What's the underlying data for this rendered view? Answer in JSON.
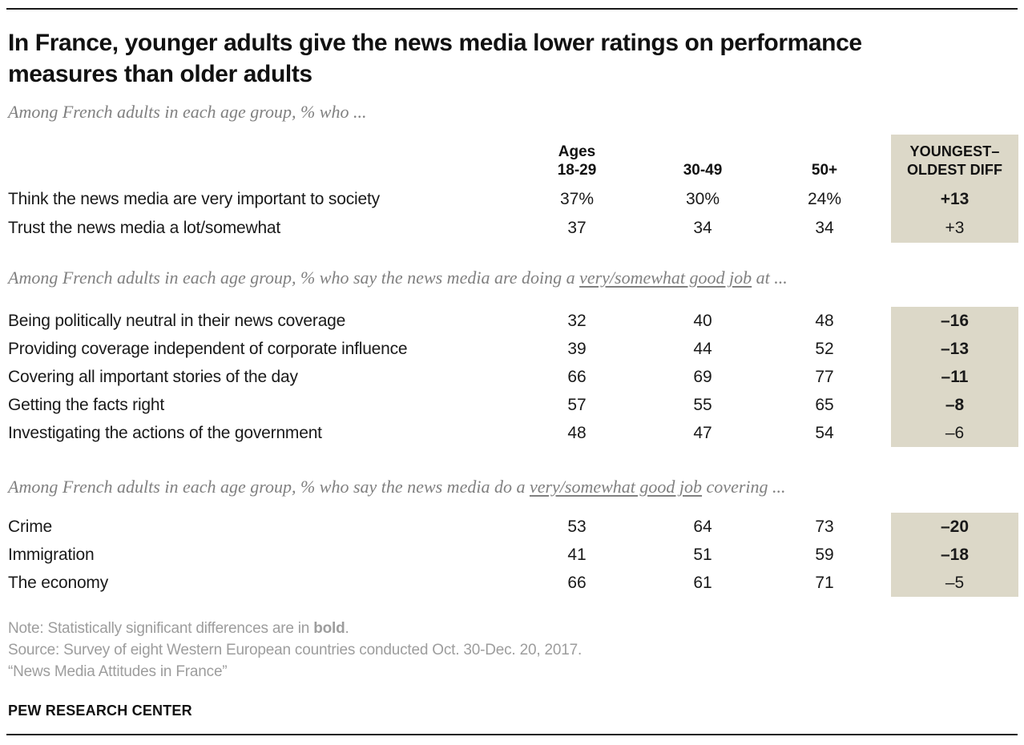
{
  "page": {
    "title": "In France, younger adults give the news media lower ratings on performance measures than older adults",
    "brand": "PEW RESEARCH CENTER"
  },
  "colors": {
    "diff_column_shade": "#dcd8c8",
    "subtitle_gray": "#808080",
    "note_gray": "#9d9d9d",
    "text_black": "#1a1a1a"
  },
  "footer": {
    "note_pre": "Note: Statistically significant differences are in ",
    "note_bold": "bold",
    "note_post": ".",
    "source": "Source: Survey of eight Western European countries conducted Oct. 30-Dec. 20, 2017.",
    "report": "“News Media Attitudes in France”"
  },
  "chart_data": {
    "type": "table",
    "title": "In France, younger adults give the news media lower ratings on performance measures than older adults",
    "columns": [
      "Ages 18-29",
      "30-49",
      "50+",
      "YOUNGEST–OLDEST DIFF"
    ],
    "header": {
      "ages_line1": "Ages",
      "ages_line2": "18-29",
      "col2": "30-49",
      "col3": "50+",
      "diff_line1": "YOUNGEST–",
      "diff_line2": "OLDEST DIFF"
    },
    "sections": [
      {
        "intro_pre": "Among French adults in each age group, % who ...",
        "intro_underline": "",
        "intro_post": "",
        "rows": [
          {
            "label": "Think the news media are very important to society",
            "v1": "37%",
            "v2": "30%",
            "v3": "24%",
            "diff": "+13",
            "diff_bold": true
          },
          {
            "label": "Trust the news media a lot/somewhat",
            "v1": "37",
            "v2": "34",
            "v3": "34",
            "diff": "+3",
            "diff_bold": false
          }
        ]
      },
      {
        "intro_pre": "Among French adults in each age group, % who say the news media are doing a ",
        "intro_underline": "very/somewhat good job",
        "intro_post": " at ...",
        "rows": [
          {
            "label": "Being politically neutral in their news coverage",
            "v1": "32",
            "v2": "40",
            "v3": "48",
            "diff": "–16",
            "diff_bold": true
          },
          {
            "label": "Providing coverage independent of corporate influence",
            "v1": "39",
            "v2": "44",
            "v3": "52",
            "diff": "–13",
            "diff_bold": true
          },
          {
            "label": "Covering all important stories of the day",
            "v1": "66",
            "v2": "69",
            "v3": "77",
            "diff": "–11",
            "diff_bold": true
          },
          {
            "label": "Getting the facts right",
            "v1": "57",
            "v2": "55",
            "v3": "65",
            "diff": "–8",
            "diff_bold": true
          },
          {
            "label": "Investigating the actions of the government",
            "v1": "48",
            "v2": "47",
            "v3": "54",
            "diff": "–6",
            "diff_bold": false
          }
        ]
      },
      {
        "intro_pre": "Among French adults in each age group, % who say the news media do a ",
        "intro_underline": "very/somewhat good job",
        "intro_post": " covering ...",
        "rows": [
          {
            "label": "Crime",
            "v1": "53",
            "v2": "64",
            "v3": "73",
            "diff": "–20",
            "diff_bold": true
          },
          {
            "label": "Immigration",
            "v1": "41",
            "v2": "51",
            "v3": "59",
            "diff": "–18",
            "diff_bold": true
          },
          {
            "label": "The economy",
            "v1": "66",
            "v2": "61",
            "v3": "71",
            "diff": "–5",
            "diff_bold": false
          }
        ]
      }
    ]
  }
}
